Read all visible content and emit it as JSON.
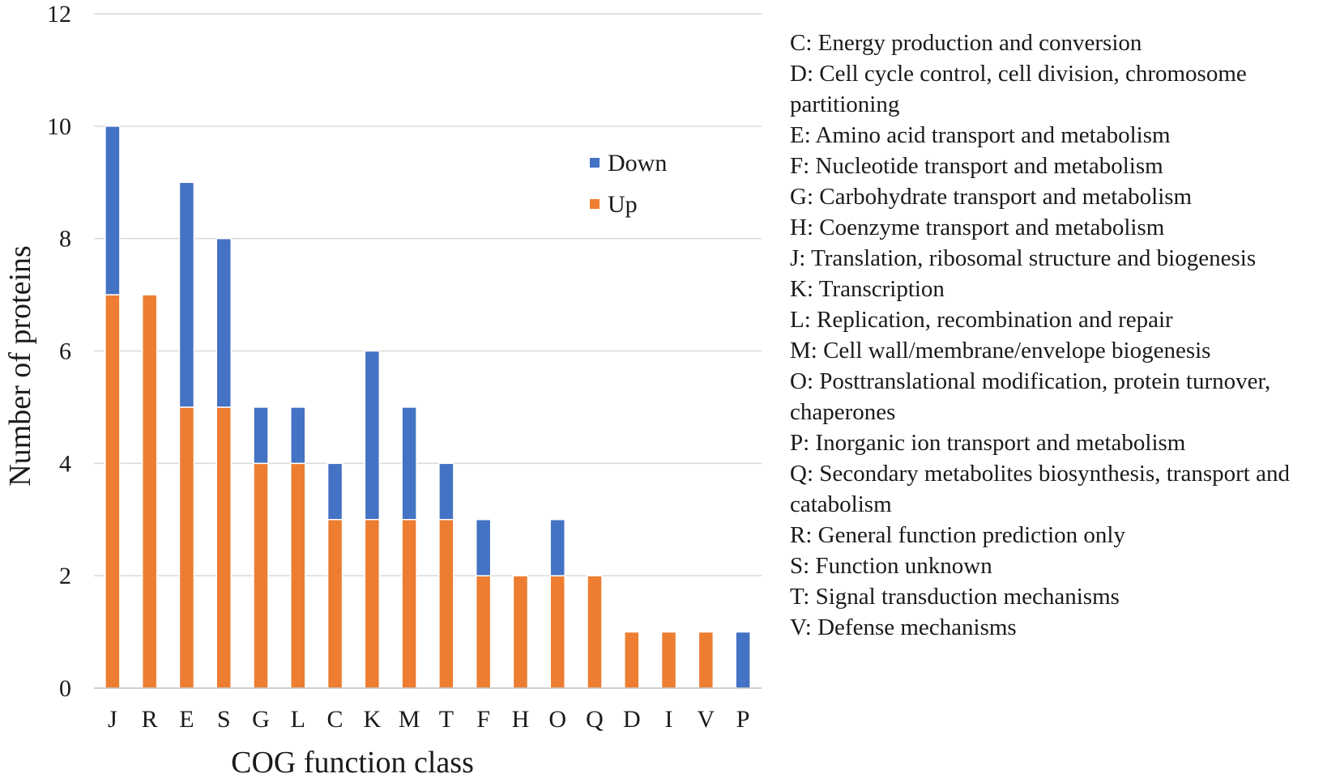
{
  "chart_data": {
    "type": "bar",
    "stacked": true,
    "xlabel": "COG function class",
    "ylabel": "Number of  proteins",
    "ylim": [
      0,
      12
    ],
    "yticks": [
      0,
      2,
      4,
      6,
      8,
      10,
      12
    ],
    "grid": true,
    "categories": [
      "J",
      "R",
      "E",
      "S",
      "G",
      "L",
      "C",
      "K",
      "M",
      "T",
      "F",
      "H",
      "O",
      "Q",
      "D",
      "I",
      "V",
      "P"
    ],
    "series": [
      {
        "name": "Up",
        "color": "#ED7D31",
        "values": [
          7,
          7,
          5,
          5,
          4,
          4,
          3,
          3,
          3,
          3,
          2,
          2,
          2,
          2,
          1,
          1,
          1,
          0
        ]
      },
      {
        "name": "Down",
        "color": "#4472C4",
        "values": [
          3,
          0,
          4,
          3,
          1,
          1,
          1,
          3,
          2,
          1,
          1,
          0,
          1,
          0,
          0,
          0,
          0,
          1
        ]
      }
    ],
    "legend": {
      "position": "top-center",
      "order": [
        "Down",
        "Up"
      ]
    }
  },
  "descriptions": [
    "C: Energy production and conversion",
    "D: Cell cycle control, cell division, chromosome partitioning",
    "E: Amino acid transport and metabolism",
    "F: Nucleotide transport and metabolism",
    "G: Carbohydrate transport and metabolism",
    "H: Coenzyme transport and metabolism",
    "J: Translation, ribosomal structure and biogenesis",
    "K: Transcription",
    "L: Replication, recombination and repair",
    "M: Cell wall/membrane/envelope biogenesis",
    "O: Posttranslational modification, protein turnover, chaperones",
    "P: Inorganic ion transport and metabolism",
    "Q: Secondary metabolites biosynthesis, transport and catabolism",
    "R: General function prediction only",
    "S: Function unknown",
    "T: Signal transduction mechanisms",
    "V: Defense mechanisms"
  ]
}
